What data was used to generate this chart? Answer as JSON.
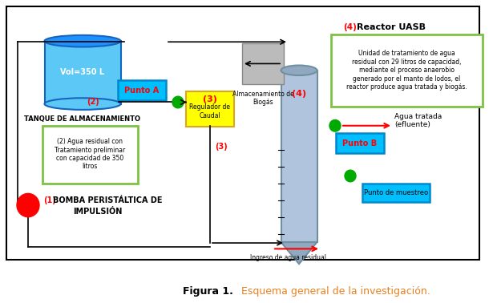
{
  "title_bold": "Figura 1.",
  "title_rest": " Esquema general de la investigación.",
  "bg_color": "#ffffff",
  "tank_face": "#5BC8F5",
  "tank_top": "#1E90FF",
  "tank_edge": "#1565C0",
  "reactor_face": "#B0C4DE",
  "reactor_edge": "#7090A0",
  "yellow_face": "#FFFF00",
  "yellow_edge": "#DAA520",
  "green_border": "#7DC242",
  "cyan_face": "#00BFFF",
  "cyan_edge": "#0088CC",
  "gray_face": "#BBBBBB",
  "gray_edge": "#888888",
  "red_circle": "#FF0000",
  "green_circle": "#00AA00",
  "red_color": "#FF0000",
  "orange_text": "#E88020",
  "black": "#000000",
  "uasb_desc": "Unidad de tratamiento de agua\nresidual con 29 litros de capacidad,\nmediante el proceso anaerobio\ngenerado por el manto de lodos, el\nreactor produce agua tratada y biogás.",
  "desc2": "(2) Agua residual con\nTratamiento preliminar\ncon capacidad de 350\nlitros"
}
